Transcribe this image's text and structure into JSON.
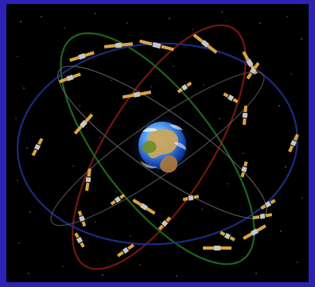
{
  "scene": {
    "subject": "satellite-constellation",
    "colors": {
      "border": "#2d22b8",
      "space": "#000000",
      "orbit_red": "#7a1812",
      "orbit_green": "#1f6b1f",
      "orbit_blue": "#1d2e86",
      "orbit_gray": "#6a6a6a",
      "panel": "#d8a640",
      "satellite_body": "#c7c7c7"
    },
    "satellite_count": 28
  }
}
